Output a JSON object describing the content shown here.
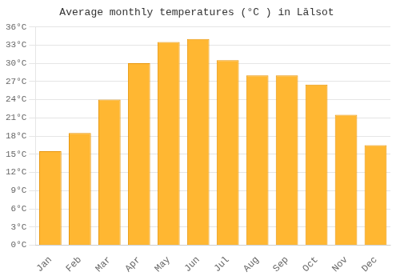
{
  "chart_data": {
    "type": "bar",
    "title": "Average monthly temperatures (°C ) in Lālsot",
    "categories": [
      "Jan",
      "Feb",
      "Mar",
      "Apr",
      "May",
      "Jun",
      "Jul",
      "Aug",
      "Sep",
      "Oct",
      "Nov",
      "Dec"
    ],
    "values": [
      15.5,
      18.5,
      24.0,
      30.0,
      33.5,
      34.0,
      30.5,
      28.0,
      28.0,
      26.5,
      21.5,
      16.5
    ],
    "color": "#FFB732",
    "ylim": [
      0,
      36
    ],
    "yticks": [
      {
        "value": 0,
        "label": "0°C"
      },
      {
        "value": 3,
        "label": "3°C"
      },
      {
        "value": 6,
        "label": "6°C"
      },
      {
        "value": 9,
        "label": "9°C"
      },
      {
        "value": 12,
        "label": "12°C"
      },
      {
        "value": 15,
        "label": "15°C"
      },
      {
        "value": 18,
        "label": "18°C"
      },
      {
        "value": 21,
        "label": "21°C"
      },
      {
        "value": 24,
        "label": "24°C"
      },
      {
        "value": 27,
        "label": "27°C"
      },
      {
        "value": 30,
        "label": "30°C"
      },
      {
        "value": 33,
        "label": "33°C"
      },
      {
        "value": 36,
        "label": "36°C"
      }
    ],
    "grid": true
  }
}
